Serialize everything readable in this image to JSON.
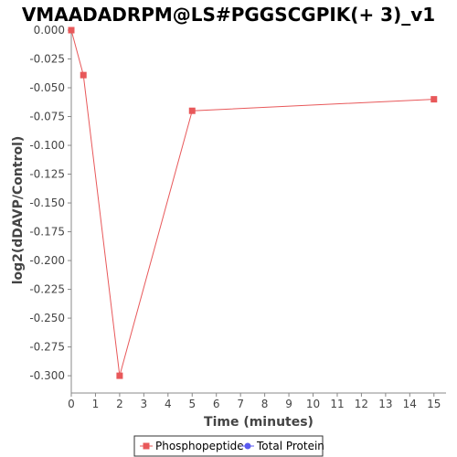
{
  "chart_data": {
    "type": "line",
    "title": "VMAADADRPM@LS#PGGSCGPIK(+ 3)_v1",
    "xlabel": "Time (minutes)",
    "ylabel": "log2(dDAVP/Control)",
    "xlim": [
      0,
      15.5
    ],
    "ylim": [
      -0.315,
      0.0
    ],
    "x_ticks": [
      0,
      1,
      2,
      3,
      4,
      5,
      6,
      7,
      8,
      9,
      10,
      11,
      12,
      13,
      14,
      15
    ],
    "x_tick_labels": [
      "0",
      "1",
      "2",
      "3",
      "4",
      "5",
      "6",
      "7",
      "8",
      "9",
      "10",
      "11",
      "12",
      "13",
      "14",
      "15"
    ],
    "y_ticks": [
      0.0,
      -0.025,
      -0.05,
      -0.075,
      -0.1,
      -0.125,
      -0.15,
      -0.175,
      -0.2,
      -0.225,
      -0.25,
      -0.275,
      -0.3
    ],
    "y_tick_labels": [
      "0.000",
      "-0.025",
      "-0.050",
      "-0.075",
      "-0.100",
      "-0.125",
      "-0.150",
      "-0.175",
      "-0.200",
      "-0.225",
      "-0.250",
      "-0.275",
      "-0.300"
    ],
    "grid": false,
    "legend_position": "bottom",
    "series": [
      {
        "name": "Phosphopeptide",
        "color": "#e8585a",
        "marker": "square",
        "x": [
          0,
          0.5,
          2,
          5,
          15
        ],
        "y": [
          0.0,
          -0.039,
          -0.3,
          -0.07,
          -0.06
        ]
      },
      {
        "name": "Total Protein",
        "color": "#5a5af0",
        "marker": "circle",
        "x": [],
        "y": []
      }
    ]
  }
}
